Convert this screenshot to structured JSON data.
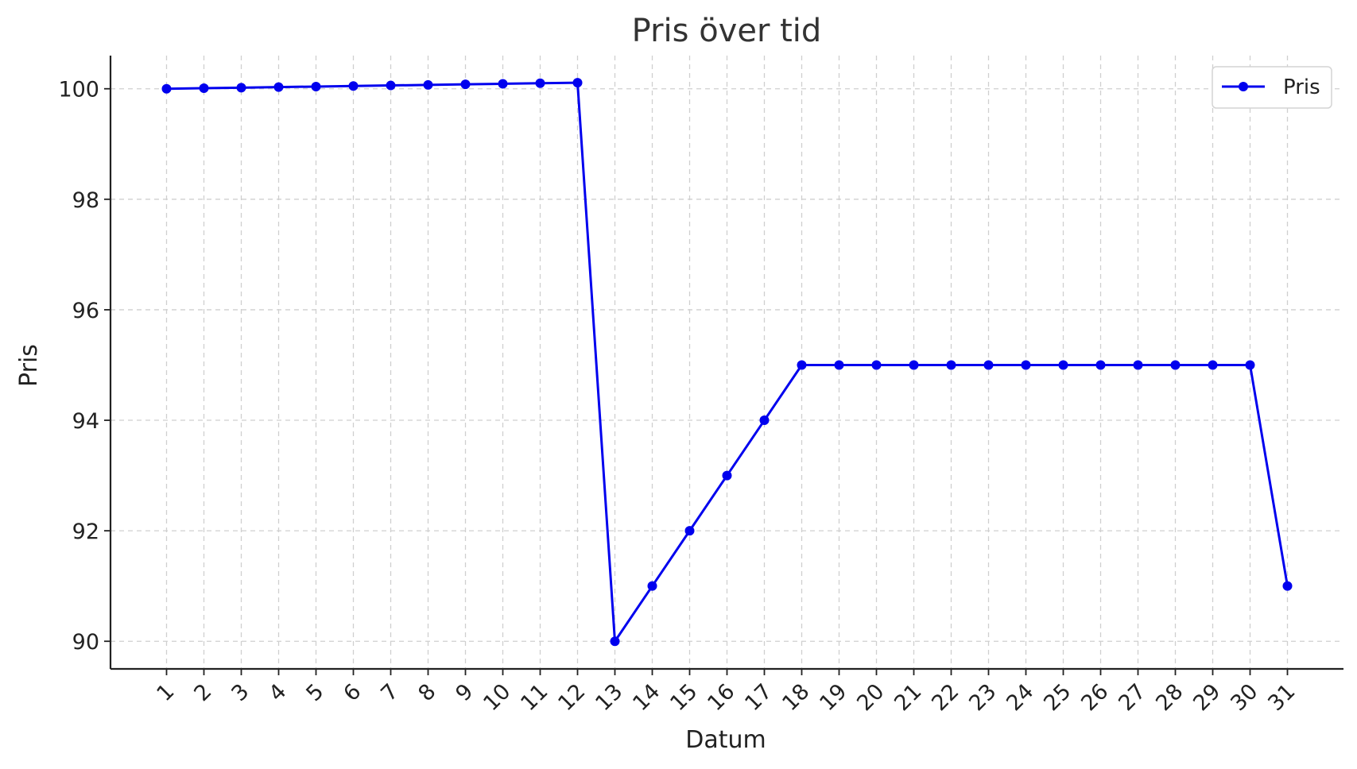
{
  "chart_data": {
    "type": "line",
    "title": "Pris över tid",
    "xlabel": "Datum",
    "ylabel": "Pris",
    "x": [
      1,
      2,
      3,
      4,
      5,
      6,
      7,
      8,
      9,
      10,
      11,
      12,
      13,
      14,
      15,
      16,
      17,
      18,
      19,
      20,
      21,
      22,
      23,
      24,
      25,
      26,
      27,
      28,
      29,
      30,
      31
    ],
    "series": [
      {
        "name": "Pris",
        "color": "#0000ee",
        "marker": "circle",
        "values": [
          100.0,
          100.01,
          100.02,
          100.03,
          100.04,
          100.05,
          100.06,
          100.07,
          100.08,
          100.09,
          100.1,
          100.11,
          90,
          91,
          92,
          93,
          94,
          95,
          95,
          95,
          95,
          95,
          95,
          95,
          95,
          95,
          95,
          95,
          95,
          95,
          91
        ]
      }
    ],
    "xticks": [
      1,
      2,
      3,
      4,
      5,
      6,
      7,
      8,
      9,
      10,
      11,
      12,
      13,
      14,
      15,
      16,
      17,
      18,
      19,
      20,
      21,
      22,
      23,
      24,
      25,
      26,
      27,
      28,
      29,
      30,
      31
    ],
    "yticks": [
      90,
      92,
      94,
      96,
      98,
      100
    ],
    "xlim": [
      -0.5,
      32.5
    ],
    "ylim": [
      89.5,
      100.6
    ],
    "grid": true,
    "legend_position": "top-right"
  }
}
